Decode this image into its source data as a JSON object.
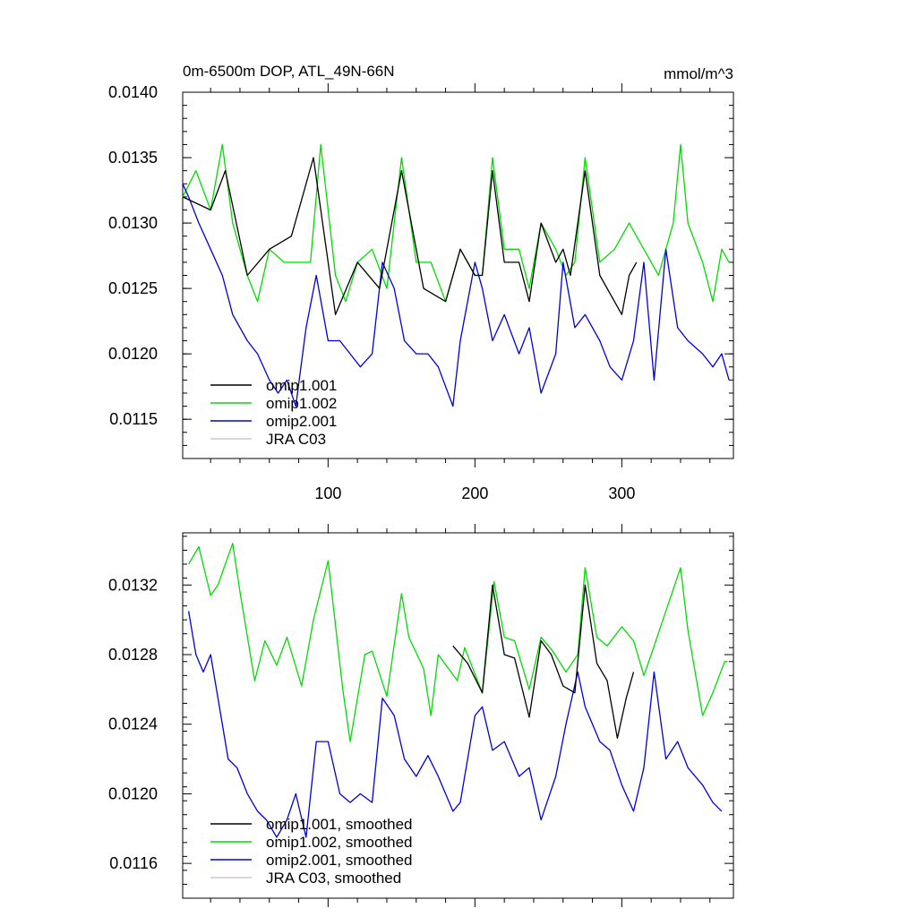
{
  "chart_data": [
    {
      "type": "line",
      "title": "0m-6500m DOP, ATL_49N-66N",
      "units": "mmol/m^3",
      "xlim": [
        1,
        376
      ],
      "ylim": [
        0.0112,
        0.014
      ],
      "yticks": [
        "0.0140",
        "0.0135",
        "0.0130",
        "0.0125",
        "0.0120",
        "0.0115"
      ],
      "ytick_values": [
        0.014,
        0.0135,
        0.013,
        0.0125,
        0.012,
        0.0115
      ],
      "xticks": [
        "100",
        "200",
        "300"
      ],
      "xtick_values": [
        100,
        200,
        300
      ],
      "series": [
        {
          "name": "omip1.001",
          "color": "#000000",
          "x": [
            1,
            20,
            30,
            45,
            60,
            75,
            90,
            105,
            120,
            135,
            150,
            165,
            180,
            190,
            200,
            205,
            212,
            220,
            230,
            237,
            245,
            255,
            260,
            265,
            275,
            285,
            295,
            300,
            305,
            310
          ],
          "y": [
            0.0132,
            0.0131,
            0.0134,
            0.0126,
            0.0128,
            0.0129,
            0.0135,
            0.0123,
            0.0127,
            0.0125,
            0.0134,
            0.0125,
            0.0124,
            0.0128,
            0.0126,
            0.0126,
            0.0134,
            0.0127,
            0.0127,
            0.0124,
            0.013,
            0.0127,
            0.0128,
            0.0126,
            0.0134,
            0.0126,
            0.0124,
            0.0123,
            0.0126,
            0.0127
          ]
        },
        {
          "name": "omip1.002",
          "color": "#00dd00",
          "x": [
            1,
            10,
            20,
            28,
            35,
            45,
            52,
            60,
            70,
            80,
            88,
            95,
            105,
            112,
            120,
            130,
            140,
            150,
            160,
            170,
            180,
            190,
            200,
            205,
            212,
            220,
            230,
            237,
            245,
            255,
            262,
            268,
            275,
            285,
            295,
            305,
            315,
            325,
            335,
            340,
            345,
            355,
            362,
            368,
            373
          ],
          "y": [
            0.0132,
            0.0134,
            0.0131,
            0.0136,
            0.013,
            0.0126,
            0.0124,
            0.0128,
            0.0127,
            0.0127,
            0.0127,
            0.0136,
            0.0126,
            0.0124,
            0.0127,
            0.0128,
            0.0125,
            0.0135,
            0.0127,
            0.0127,
            0.0124,
            0.0128,
            0.0126,
            0.0126,
            0.0135,
            0.0128,
            0.0128,
            0.0125,
            0.013,
            0.0128,
            0.0126,
            0.0127,
            0.0135,
            0.0127,
            0.0128,
            0.013,
            0.0128,
            0.0126,
            0.013,
            0.0136,
            0.013,
            0.0127,
            0.0124,
            0.0128,
            0.0127
          ]
        },
        {
          "name": "omip2.001",
          "color": "#0000dd",
          "x": [
            1,
            5,
            12,
            20,
            28,
            35,
            45,
            52,
            60,
            66,
            72,
            78,
            85,
            92,
            100,
            108,
            115,
            122,
            130,
            137,
            145,
            152,
            160,
            168,
            175,
            185,
            190,
            200,
            205,
            212,
            220,
            230,
            237,
            245,
            255,
            260,
            268,
            275,
            285,
            292,
            300,
            308,
            315,
            322,
            330,
            338,
            345,
            355,
            362,
            368,
            373
          ],
          "y": [
            0.0133,
            0.0132,
            0.013,
            0.0128,
            0.0126,
            0.0123,
            0.0121,
            0.012,
            0.0118,
            0.0117,
            0.0118,
            0.0116,
            0.0122,
            0.0126,
            0.0121,
            0.0121,
            0.012,
            0.0119,
            0.012,
            0.0127,
            0.0125,
            0.0121,
            0.012,
            0.012,
            0.0119,
            0.0116,
            0.0121,
            0.0127,
            0.0125,
            0.0121,
            0.0123,
            0.012,
            0.0122,
            0.0117,
            0.012,
            0.0127,
            0.0122,
            0.0123,
            0.0121,
            0.0119,
            0.0118,
            0.0121,
            0.0127,
            0.0118,
            0.0128,
            0.0122,
            0.0121,
            0.012,
            0.0119,
            0.012,
            0.0118
          ]
        },
        {
          "name": "JRA C03",
          "color": "#c8c8c8",
          "x": [],
          "y": []
        }
      ]
    },
    {
      "type": "line",
      "title": "",
      "xlim": [
        1,
        376
      ],
      "ylim": [
        0.0114,
        0.0135
      ],
      "yticks": [
        "0.0132",
        "0.0128",
        "0.0124",
        "0.0120",
        "0.0116"
      ],
      "ytick_values": [
        0.0132,
        0.0128,
        0.0124,
        0.012,
        0.0116
      ],
      "xticks": [],
      "xtick_values": [
        100,
        200,
        300
      ],
      "series": [
        {
          "name": "omip1.001, smoothed",
          "color": "#000000",
          "x": [
            185,
            195,
            205,
            212,
            220,
            227,
            237,
            245,
            252,
            260,
            268,
            275,
            283,
            290,
            297,
            303,
            308
          ],
          "y": [
            0.01285,
            0.01275,
            0.01258,
            0.0132,
            0.0128,
            0.01278,
            0.01244,
            0.01288,
            0.0128,
            0.01262,
            0.01258,
            0.0132,
            0.01275,
            0.01265,
            0.01232,
            0.01255,
            0.0127
          ]
        },
        {
          "name": "omip1.002, smoothed",
          "color": "#00dd00",
          "x": [
            5,
            12,
            20,
            25,
            35,
            40,
            50,
            57,
            65,
            72,
            82,
            90,
            100,
            110,
            115,
            125,
            130,
            140,
            150,
            155,
            165,
            170,
            175,
            188,
            193,
            205,
            213,
            220,
            227,
            237,
            245,
            253,
            262,
            270,
            275,
            283,
            290,
            300,
            308,
            315,
            320,
            328,
            340,
            345,
            355,
            362,
            370,
            372
          ],
          "y": [
            0.01332,
            0.01342,
            0.01314,
            0.0132,
            0.01344,
            0.01316,
            0.01265,
            0.01288,
            0.01274,
            0.0129,
            0.01262,
            0.013,
            0.01334,
            0.0126,
            0.0123,
            0.0128,
            0.01282,
            0.01256,
            0.01315,
            0.0129,
            0.01272,
            0.01245,
            0.0128,
            0.01265,
            0.01284,
            0.01258,
            0.01322,
            0.0129,
            0.01288,
            0.0126,
            0.0129,
            0.01282,
            0.0127,
            0.0128,
            0.0133,
            0.0129,
            0.01285,
            0.01296,
            0.01288,
            0.01268,
            0.0128,
            0.013,
            0.0133,
            0.01294,
            0.01245,
            0.01258,
            0.01276,
            0.01276
          ]
        },
        {
          "name": "omip2.001, smoothed",
          "color": "#0000dd",
          "x": [
            5,
            10,
            15,
            20,
            25,
            32,
            38,
            45,
            52,
            58,
            65,
            72,
            78,
            85,
            92,
            100,
            108,
            115,
            122,
            130,
            137,
            145,
            152,
            160,
            168,
            175,
            185,
            190,
            200,
            205,
            212,
            220,
            230,
            237,
            245,
            255,
            262,
            270,
            275,
            285,
            292,
            300,
            308,
            315,
            322,
            330,
            338,
            345,
            355,
            362,
            368
          ],
          "y": [
            0.01305,
            0.0128,
            0.0127,
            0.0128,
            0.01255,
            0.0122,
            0.01215,
            0.012,
            0.0119,
            0.01185,
            0.01175,
            0.01185,
            0.012,
            0.01175,
            0.0123,
            0.0123,
            0.012,
            0.01195,
            0.012,
            0.01195,
            0.01255,
            0.01245,
            0.0122,
            0.0121,
            0.01222,
            0.0121,
            0.0119,
            0.01195,
            0.01245,
            0.0125,
            0.01225,
            0.0123,
            0.0121,
            0.01215,
            0.01185,
            0.0121,
            0.0124,
            0.0127,
            0.0125,
            0.0123,
            0.01225,
            0.01205,
            0.0119,
            0.01215,
            0.0127,
            0.0122,
            0.0123,
            0.01215,
            0.01205,
            0.01195,
            0.0119
          ]
        },
        {
          "name": "JRA C03, smoothed",
          "color": "#c8c8c8",
          "x": [],
          "y": []
        }
      ]
    }
  ]
}
